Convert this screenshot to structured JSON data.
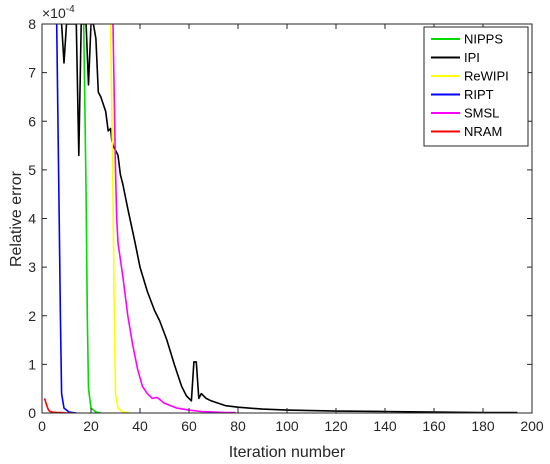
{
  "chart_data": {
    "type": "line",
    "xlabel": "Iteration number",
    "ylabel": "Relative error",
    "y_scale_label": "×10",
    "y_scale_exponent": "-4",
    "xlim": [
      0,
      200
    ],
    "ylim": [
      0,
      8
    ],
    "x_ticks": [
      "0",
      "20",
      "40",
      "60",
      "80",
      "100",
      "120",
      "140",
      "160",
      "180",
      "200"
    ],
    "y_ticks": [
      "0",
      "1",
      "2",
      "3",
      "4",
      "5",
      "6",
      "7",
      "8"
    ],
    "legend_position": "top-right",
    "grid": false,
    "series": [
      {
        "name": "NIPPS",
        "color": "#00dd00",
        "x": [
          17,
          18,
          18.5,
          19,
          20,
          22,
          24
        ],
        "y": [
          8,
          4.5,
          2,
          0.5,
          0.1,
          0.02,
          0
        ]
      },
      {
        "name": "IPI",
        "color": "#000000",
        "x": [
          8,
          9,
          10,
          12,
          13,
          14,
          15,
          16,
          17,
          18,
          19,
          20,
          21,
          22,
          23,
          24,
          26,
          27,
          28,
          28.5,
          29,
          30,
          31,
          32,
          33,
          35,
          38,
          40,
          43,
          46,
          48,
          51,
          54,
          57,
          59,
          61,
          62,
          63,
          64,
          65,
          66,
          67,
          69,
          72,
          75,
          80,
          90,
          100,
          110,
          120,
          140,
          160,
          180,
          194
        ],
        "y": [
          8,
          7.2,
          8,
          8,
          8,
          8,
          5.3,
          8,
          8,
          8,
          6.75,
          8,
          8,
          7.7,
          6.6,
          6.5,
          6.2,
          5.8,
          5.85,
          5.6,
          5.5,
          5.4,
          5.3,
          4.9,
          4.7,
          4.2,
          3.5,
          3.0,
          2.5,
          2.1,
          1.9,
          1.5,
          1.0,
          0.55,
          0.35,
          0.25,
          1.05,
          1.05,
          0.3,
          0.4,
          0.35,
          0.3,
          0.25,
          0.2,
          0.15,
          0.12,
          0.08,
          0.06,
          0.05,
          0.04,
          0.03,
          0.02,
          0.01,
          0.01
        ]
      },
      {
        "name": "ReWIPI",
        "color": "#ffff00",
        "x": [
          28,
          29,
          29.5,
          30,
          31,
          33,
          36
        ],
        "y": [
          8,
          4.5,
          2,
          0.4,
          0.1,
          0.02,
          0
        ]
      },
      {
        "name": "RIPT",
        "color": "#0000ff",
        "x": [
          6,
          7,
          7.5,
          8,
          9,
          11,
          14
        ],
        "y": [
          8,
          4,
          2,
          0.4,
          0.1,
          0.02,
          0
        ]
      },
      {
        "name": "SMSL",
        "color": "#ff00ff",
        "x": [
          29,
          30,
          30.5,
          31,
          33,
          35,
          37,
          39,
          41,
          43,
          45,
          47,
          50,
          55,
          60,
          65,
          70,
          75,
          79
        ],
        "y": [
          8,
          5,
          4.0,
          3.5,
          2.8,
          2.0,
          1.4,
          0.9,
          0.55,
          0.4,
          0.3,
          0.32,
          0.2,
          0.1,
          0.06,
          0.03,
          0.02,
          0.01,
          0.01
        ]
      },
      {
        "name": "NRAM",
        "color": "#ff0000",
        "x": [
          1,
          2,
          2.5,
          3,
          4,
          6,
          8,
          10,
          13
        ],
        "y": [
          0.3,
          0.15,
          0.08,
          0.04,
          0.02,
          0.01,
          0.01,
          0.0,
          0
        ]
      }
    ]
  }
}
